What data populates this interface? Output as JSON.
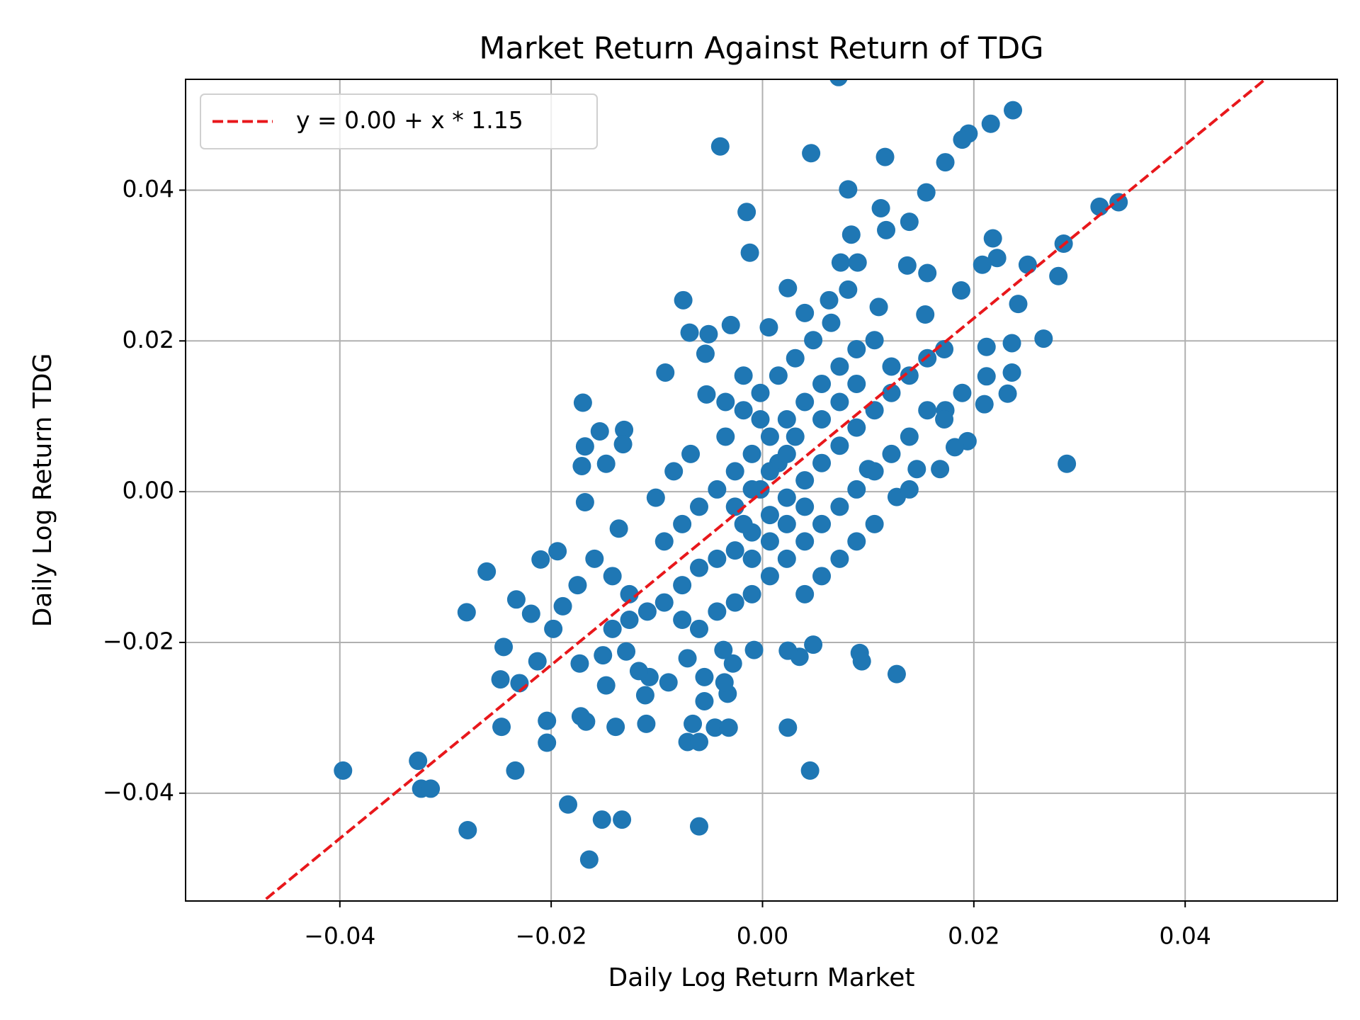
{
  "chart_data": {
    "type": "scatter",
    "title": "Market Return Against Return of TDG",
    "x_label": "Daily Log Return Market",
    "y_label": "Daily Log Return TDG",
    "color": "#1f77b4",
    "grid": true,
    "legend": "upper left",
    "fit_line": {
      "name": "y = 0.00 + x * 1.15",
      "intercept": 0.0,
      "slope": 1.15,
      "color": "#e8171b",
      "dashed": true
    },
    "xlim": [
      -0.0546,
      0.0544
    ],
    "ylim": [
      -0.0543,
      0.0547
    ],
    "xticks": [
      {
        "value": -0.04,
        "label": "−0.04"
      },
      {
        "value": -0.02,
        "label": "−0.02"
      },
      {
        "value": 0,
        "label": "0.00"
      },
      {
        "value": 0.02,
        "label": "0.02"
      },
      {
        "value": 0.04,
        "label": "0.04"
      }
    ],
    "yticks": [
      {
        "value": -0.04,
        "label": "−0.04"
      },
      {
        "value": -0.02,
        "label": "−0.02"
      },
      {
        "value": 0,
        "label": "0.00"
      },
      {
        "value": 0.02,
        "label": "0.02"
      },
      {
        "value": 0.04,
        "label": "0.04"
      }
    ],
    "x": [
      0.0072,
      0.0237,
      0.0216,
      0.0195,
      0.0189,
      -0.004,
      0.0046,
      0.0116,
      0.0173,
      0.0081,
      0.0155,
      0.0112,
      -0.0015,
      0.0139,
      0.0319,
      0.0337,
      0.0117,
      0.0084,
      0.0218,
      0.0285,
      -0.0012,
      0.0222,
      0.0074,
      0.009,
      0.0137,
      0.0208,
      0.0251,
      0.0156,
      0.028,
      0.0024,
      0.0188,
      0.0081,
      -0.0075,
      0.0063,
      0.0242,
      0.004,
      0.011,
      0.0154,
      -0.003,
      0.0006,
      -0.0069,
      -0.0051,
      0.0266,
      0.0236,
      0.0212,
      -0.0054,
      0.0236,
      -0.0092,
      0.0212,
      -0.0053,
      0.0232,
      -0.017,
      0.021,
      0.0173,
      -0.0131,
      -0.0154,
      -0.0132,
      -0.0168,
      0.0194,
      0.0182,
      0.0168,
      0.0146,
      0.0288,
      -0.0171,
      -0.0148,
      0.01,
      -0.0168,
      0.0127,
      -0.0136,
      -0.0194,
      -0.021,
      -0.0261,
      -0.028,
      -0.0233,
      -0.0219,
      -0.0189,
      -0.0198,
      -0.0245,
      -0.0213,
      -0.0248,
      -0.023,
      -0.0173,
      -0.0148,
      -0.0247,
      -0.0204,
      -0.0204,
      -0.0172,
      -0.0167,
      -0.0139,
      -0.011,
      -0.0326,
      -0.0397,
      -0.0234,
      -0.0323,
      -0.0314,
      -0.0279,
      -0.0184,
      -0.0152,
      -0.0133,
      -0.0164,
      -0.006,
      0.0045,
      0.0024,
      -0.0071,
      -0.006,
      -0.0045,
      -0.0032,
      -0.0066,
      -0.0055,
      -0.0033,
      -0.0036,
      -0.0055,
      -0.0089,
      -0.0107,
      -0.0117,
      -0.0111,
      0.0127,
      0.0092,
      0.0094,
      0.0048,
      0.0035,
      0.0024,
      -0.0008,
      -0.0028,
      -0.0037,
      -0.0129,
      -0.0151,
      -0.0071,
      -0.0142,
      -0.0126,
      -0.0109,
      -0.0093,
      -0.0076,
      -0.006,
      -0.0043,
      -0.0026,
      -0.001,
      0.0007,
      0.0023,
      0.004,
      0.0056,
      0.0073,
      0.0089,
      0.0106,
      0.0122,
      0.0139,
      0.0156,
      0.0172,
      -0.0093,
      -0.0076,
      -0.006,
      -0.0043,
      -0.0026,
      -0.001,
      0.0007,
      0.0023,
      0.004,
      0.0056,
      0.0073,
      0.0089,
      0.0106,
      -0.0043,
      -0.0026,
      -0.001,
      0.0007,
      0.0023,
      0.004,
      0.0056,
      0.0073,
      0.0089,
      0.0106,
      0.0122,
      0.0139,
      -0.0101,
      -0.0084,
      -0.0068,
      -0.0035,
      -0.0018,
      -0.0002,
      0.0015,
      0.0031,
      0.0048,
      0.0065,
      -0.0018,
      -0.0002,
      0.0015,
      0.0031,
      0.0007,
      -0.001,
      -0.0026,
      0.0023,
      0.004,
      -0.0159,
      -0.0175,
      -0.0142,
      -0.0126,
      0.0073,
      0.0056,
      0.004,
      0.0156,
      0.0172,
      0.0189,
      0.0139,
      0.0106,
      0.0089,
      -0.006,
      -0.0076,
      -0.001,
      0.0007,
      0.0023,
      0.0056,
      0.0073,
      0.0122,
      0.0089,
      -0.0002,
      -0.0018,
      -0.0035
    ],
    "y": [
      0.055,
      0.0506,
      0.0488,
      0.0475,
      0.0467,
      0.0458,
      0.0449,
      0.0444,
      0.0437,
      0.0401,
      0.0397,
      0.0376,
      0.0371,
      0.0358,
      0.0378,
      0.0384,
      0.0347,
      0.0341,
      0.0336,
      0.0329,
      0.0317,
      0.031,
      0.0304,
      0.0304,
      0.03,
      0.0301,
      0.0301,
      0.029,
      0.0286,
      0.027,
      0.0267,
      0.0268,
      0.0254,
      0.0254,
      0.0249,
      0.0237,
      0.0245,
      0.0235,
      0.0221,
      0.0218,
      0.0211,
      0.0209,
      0.0203,
      0.0197,
      0.0192,
      0.0183,
      0.0158,
      0.0158,
      0.0153,
      0.0129,
      0.013,
      0.0118,
      0.0116,
      0.0108,
      0.0082,
      0.008,
      0.0063,
      0.006,
      0.0067,
      0.0059,
      0.003,
      0.003,
      0.0037,
      0.0034,
      0.0037,
      0.003,
      -0.0014,
      -0.0007,
      -0.0049,
      -0.0079,
      -0.009,
      -0.0106,
      -0.016,
      -0.0143,
      -0.0162,
      -0.0152,
      -0.0182,
      -0.0206,
      -0.0225,
      -0.0249,
      -0.0254,
      -0.0228,
      -0.0257,
      -0.0312,
      -0.0304,
      -0.0333,
      -0.0298,
      -0.0305,
      -0.0312,
      -0.0308,
      -0.0357,
      -0.037,
      -0.037,
      -0.0394,
      -0.0394,
      -0.0449,
      -0.0415,
      -0.0435,
      -0.0435,
      -0.0488,
      -0.0444,
      -0.037,
      -0.0313,
      -0.0332,
      -0.0332,
      -0.0313,
      -0.0313,
      -0.0308,
      -0.0278,
      -0.0268,
      -0.0253,
      -0.0246,
      -0.0253,
      -0.0246,
      -0.0238,
      -0.027,
      -0.0242,
      -0.0214,
      -0.0225,
      -0.0203,
      -0.0219,
      -0.0211,
      -0.021,
      -0.0228,
      -0.021,
      -0.0212,
      -0.0217,
      -0.0221,
      -0.0112,
      -0.0136,
      -0.0159,
      -0.0147,
      -0.0124,
      -0.0101,
      -0.0089,
      -0.0078,
      -0.0054,
      -0.0031,
      -0.0008,
      0.0015,
      0.0038,
      0.0061,
      0.0085,
      0.0108,
      0.0131,
      0.0154,
      0.0177,
      0.0189,
      -0.0066,
      -0.0043,
      -0.002,
      0.0003,
      0.0027,
      0.005,
      0.0073,
      0.0096,
      0.0119,
      0.0143,
      0.0166,
      0.0189,
      0.0201,
      -0.0159,
      -0.0147,
      -0.0136,
      -0.0112,
      -0.0089,
      -0.0066,
      -0.0043,
      -0.002,
      0.0003,
      0.0027,
      0.005,
      0.0073,
      -0.0008,
      0.0027,
      0.005,
      0.0073,
      0.0108,
      0.0131,
      0.0154,
      0.0177,
      0.0201,
      0.0224,
      -0.0043,
      0.0003,
      0.0038,
      0.0073,
      0.0027,
      0.0003,
      -0.002,
      -0.0043,
      -0.002,
      -0.0089,
      -0.0124,
      -0.0182,
      -0.017,
      -0.0089,
      -0.0112,
      -0.0136,
      0.0108,
      0.0096,
      0.0131,
      0.0003,
      -0.0043,
      -0.0066,
      -0.0182,
      -0.017,
      -0.0089,
      -0.0066,
      0.005,
      0.0096,
      0.0119,
      0.0166,
      0.0143,
      0.0096,
      0.0154,
      0.0119
    ]
  }
}
